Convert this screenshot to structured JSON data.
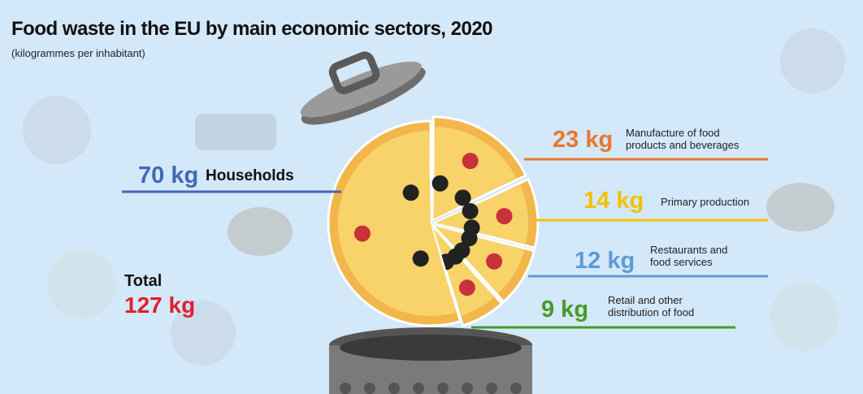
{
  "chart_data": {
    "type": "pie",
    "title": "Food waste in the EU by main economic sectors, 2020",
    "subtitle": "(kilogrammes per inhabitant)",
    "categories": [
      "Manufacture of food products and beverages",
      "Primary production",
      "Restaurants and food services",
      "Retail and other distribution of food",
      "Households"
    ],
    "values": [
      23,
      14,
      12,
      9,
      70
    ],
    "value_labels": [
      "23 kg",
      "14 kg",
      "12 kg",
      "9 kg",
      "70 kg"
    ],
    "colors": [
      "#e8772e",
      "#f2c200",
      "#5b9bd5",
      "#4a9a2a",
      "#4466b8"
    ],
    "total": {
      "label": "Total",
      "value": 127,
      "value_label": "127 kg",
      "color": "#e0202a"
    }
  }
}
